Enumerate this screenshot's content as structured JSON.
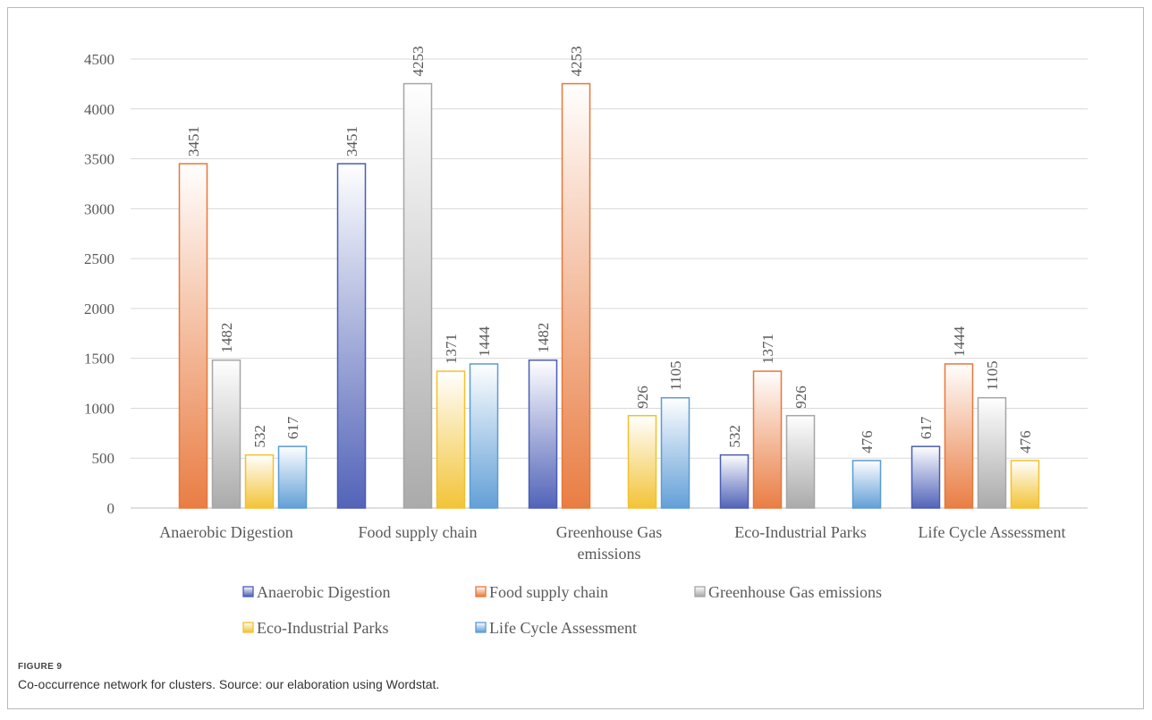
{
  "figure": {
    "label": "FIGURE 9",
    "caption": "Co-occurrence network for clusters. Source: our elaboration using Wordstat."
  },
  "chart_data": {
    "type": "bar",
    "title": "",
    "xlabel": "",
    "ylabel": "",
    "ylim": [
      0,
      4500
    ],
    "yticks": [
      0,
      500,
      1000,
      1500,
      2000,
      2500,
      3000,
      3500,
      4000,
      4500
    ],
    "grid": true,
    "legend_position": "bottom",
    "categories": [
      "Anaerobic Digestion",
      "Food supply chain",
      "Greenhouse Gas emissions",
      "Eco-Industrial Parks",
      "Life Cycle Assessment"
    ],
    "series": [
      {
        "name": "Anaerobic Digestion",
        "color": "#4a5cb5",
        "values": [
          null,
          3451,
          1482,
          532,
          617
        ]
      },
      {
        "name": "Food supply chain",
        "color": "#e8773a",
        "values": [
          3451,
          null,
          4253,
          1371,
          1444
        ]
      },
      {
        "name": "Greenhouse Gas emissions",
        "color": "#a6a6a6",
        "values": [
          1482,
          4253,
          null,
          926,
          1105
        ]
      },
      {
        "name": "Eco-Industrial Parks",
        "color": "#f2c12e",
        "values": [
          532,
          1371,
          926,
          null,
          476
        ]
      },
      {
        "name": "Life Cycle Assessment",
        "color": "#5b9bd5",
        "values": [
          617,
          1444,
          1105,
          476,
          null
        ]
      }
    ]
  }
}
